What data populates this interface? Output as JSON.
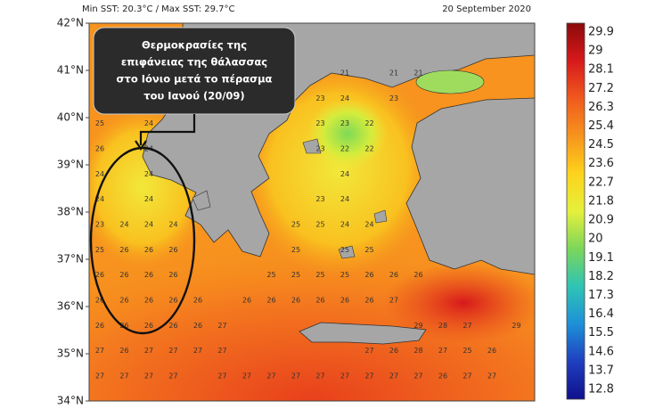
{
  "header": {
    "min_max": "Min SST: 20.3°C / Max SST: 29.7°C",
    "date": "20 September 2020"
  },
  "annotation": {
    "lines": [
      "Θερμοκρασίες της",
      "επιφάνειας της θάλασσας",
      "στο Ιόνιο μετά το πέρασμα",
      "του Ιανού (20/09)"
    ]
  },
  "lat_labels": [
    "42°N",
    "41°N",
    "40°N",
    "39°N",
    "38°N",
    "37°N",
    "36°N",
    "35°N",
    "34°N"
  ],
  "colorbar": {
    "labels": [
      "29.9",
      "29",
      "28.1",
      "27.2",
      "26.3",
      "25.4",
      "24.5",
      "23.6",
      "22.7",
      "21.8",
      "20.9",
      "20",
      "19.1",
      "18.2",
      "17.3",
      "16.4",
      "15.5",
      "14.6",
      "13.7",
      "12.8"
    ],
    "colors": [
      "#8b0a0a",
      "#d7191c",
      "#f05a1e",
      "#f7941d",
      "#fdd31c",
      "#e6f03c",
      "#7cd65a",
      "#2fc4b4",
      "#1e90d8",
      "#1f3fbf",
      "#10108c"
    ]
  },
  "grid": {
    "rows": [
      [
        null,
        null,
        null,
        null,
        null,
        null,
        null,
        null,
        null,
        null,
        21,
        null,
        21,
        21,
        null,
        null,
        null,
        null
      ],
      [
        null,
        null,
        null,
        null,
        null,
        null,
        null,
        null,
        null,
        23,
        24,
        null,
        23,
        null,
        null,
        null,
        null,
        null
      ],
      [
        25,
        null,
        24,
        null,
        null,
        null,
        null,
        null,
        null,
        23,
        23,
        22,
        null,
        null,
        null,
        null,
        null,
        null
      ],
      [
        26,
        null,
        24,
        null,
        null,
        null,
        null,
        null,
        null,
        23,
        22,
        22,
        null,
        null,
        null,
        null,
        null,
        null
      ],
      [
        24,
        null,
        24,
        null,
        null,
        null,
        null,
        null,
        null,
        null,
        24,
        null,
        null,
        null,
        null,
        null,
        null,
        null
      ],
      [
        24,
        null,
        24,
        null,
        null,
        null,
        null,
        null,
        null,
        23,
        24,
        null,
        null,
        null,
        null,
        null,
        null,
        null
      ],
      [
        23,
        24,
        24,
        24,
        null,
        null,
        null,
        null,
        25,
        25,
        24,
        24,
        null,
        null,
        null,
        null,
        null,
        null
      ],
      [
        25,
        26,
        26,
        26,
        null,
        null,
        null,
        null,
        25,
        null,
        25,
        25,
        null,
        null,
        null,
        null,
        null,
        null
      ],
      [
        26,
        26,
        26,
        26,
        null,
        null,
        null,
        25,
        25,
        25,
        25,
        26,
        26,
        26,
        null,
        null,
        null,
        null
      ],
      [
        26,
        26,
        26,
        26,
        26,
        null,
        26,
        26,
        26,
        26,
        26,
        26,
        27,
        null,
        null,
        null,
        null,
        null
      ],
      [
        26,
        26,
        26,
        26,
        26,
        27,
        null,
        null,
        null,
        null,
        null,
        null,
        null,
        29,
        28,
        27,
        null,
        29
      ],
      [
        27,
        26,
        27,
        27,
        27,
        27,
        null,
        null,
        null,
        null,
        null,
        27,
        26,
        28,
        27,
        25,
        26,
        null
      ],
      [
        27,
        27,
        27,
        27,
        null,
        27,
        27,
        27,
        27,
        27,
        27,
        27,
        27,
        27,
        26,
        27,
        27,
        null
      ]
    ]
  }
}
